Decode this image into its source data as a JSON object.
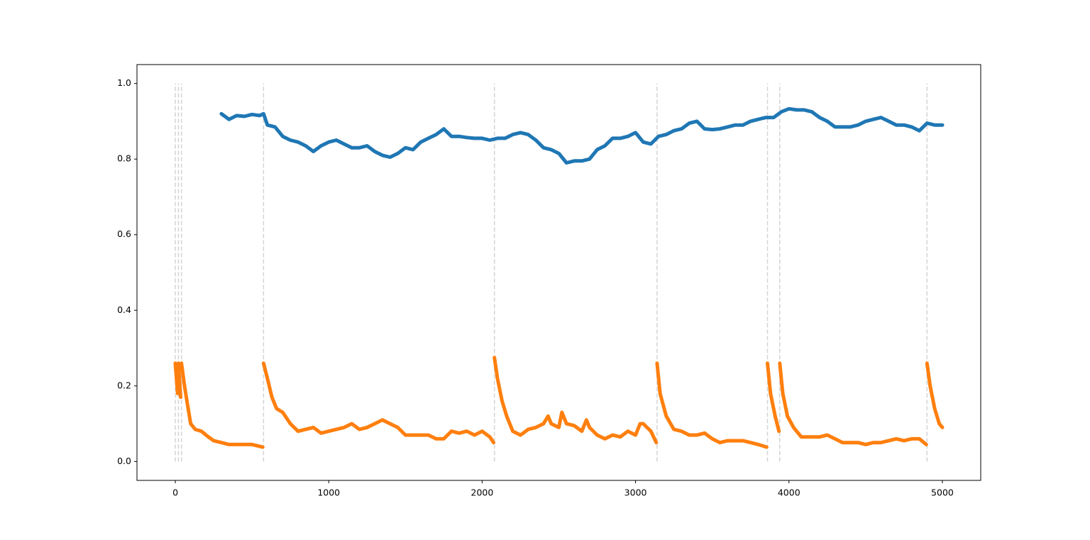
{
  "chart_data": {
    "type": "line",
    "xlim": [
      -250,
      5250
    ],
    "ylim": [
      -0.05,
      1.05
    ],
    "xticks": [
      0,
      1000,
      2000,
      3000,
      4000,
      5000
    ],
    "yticks": [
      {
        "value": 0,
        "label": "0.0"
      },
      0.2,
      0.4,
      0.6,
      0.8,
      {
        "value": 1,
        "label": "1.0"
      }
    ],
    "vlines": [
      0,
      20,
      40,
      575,
      2080,
      3140,
      3860,
      3940,
      4900
    ],
    "vline_range": [
      0,
      1
    ],
    "vline_color": "#d3d3d3",
    "series": [
      {
        "color": "#1f77b4",
        "x": [
          300,
          350,
          400,
          450,
          500,
          550,
          575,
          600,
          650,
          700,
          750,
          800,
          850,
          900,
          950,
          1000,
          1050,
          1100,
          1150,
          1200,
          1250,
          1300,
          1350,
          1400,
          1450,
          1500,
          1550,
          1600,
          1650,
          1700,
          1750,
          1800,
          1850,
          1900,
          1950,
          2000,
          2050,
          2100,
          2150,
          2200,
          2250,
          2300,
          2350,
          2400,
          2450,
          2500,
          2550,
          2600,
          2650,
          2700,
          2750,
          2800,
          2850,
          2900,
          2950,
          3000,
          3050,
          3100,
          3150,
          3200,
          3250,
          3300,
          3350,
          3400,
          3450,
          3500,
          3550,
          3600,
          3650,
          3700,
          3750,
          3800,
          3850,
          3900,
          3950,
          4000,
          4050,
          4100,
          4150,
          4200,
          4250,
          4300,
          4350,
          4400,
          4450,
          4500,
          4550,
          4600,
          4650,
          4700,
          4750,
          4800,
          4850,
          4900,
          4950,
          5000
        ],
        "values": [
          0.92,
          0.905,
          0.915,
          0.913,
          0.918,
          0.915,
          0.92,
          0.89,
          0.885,
          0.86,
          0.85,
          0.845,
          0.835,
          0.82,
          0.835,
          0.845,
          0.85,
          0.84,
          0.83,
          0.83,
          0.835,
          0.82,
          0.81,
          0.805,
          0.815,
          0.83,
          0.825,
          0.845,
          0.855,
          0.865,
          0.88,
          0.86,
          0.86,
          0.857,
          0.855,
          0.855,
          0.85,
          0.855,
          0.855,
          0.865,
          0.87,
          0.865,
          0.85,
          0.83,
          0.825,
          0.815,
          0.79,
          0.795,
          0.795,
          0.8,
          0.825,
          0.835,
          0.855,
          0.855,
          0.86,
          0.87,
          0.845,
          0.84,
          0.86,
          0.865,
          0.875,
          0.88,
          0.895,
          0.9,
          0.88,
          0.878,
          0.88,
          0.885,
          0.89,
          0.89,
          0.9,
          0.905,
          0.91,
          0.91,
          0.925,
          0.933,
          0.93,
          0.93,
          0.925,
          0.91,
          0.9,
          0.885,
          0.885,
          0.885,
          0.89,
          0.9,
          0.905,
          0.91,
          0.9,
          0.89,
          0.89,
          0.885,
          0.875,
          0.895,
          0.89,
          0.89
        ]
      },
      {
        "color": "#ff7f0e",
        "x": [
          0,
          15,
          null,
          20,
          35,
          null,
          40,
          60,
          80,
          100,
          130,
          170,
          200,
          250,
          300,
          350,
          400,
          450,
          500,
          550,
          570,
          null,
          575,
          600,
          630,
          660,
          700,
          750,
          800,
          850,
          900,
          950,
          1000,
          1050,
          1100,
          1150,
          1200,
          1250,
          1300,
          1350,
          1400,
          1450,
          1500,
          1550,
          1600,
          1650,
          1700,
          1750,
          1800,
          1850,
          1900,
          1950,
          2000,
          2050,
          2075,
          null,
          2080,
          2100,
          2130,
          2160,
          2200,
          2250,
          2300,
          2350,
          2400,
          2430,
          2450,
          2500,
          2520,
          2550,
          2600,
          2650,
          2680,
          2700,
          2750,
          2800,
          2850,
          2900,
          2950,
          3000,
          3030,
          3050,
          3100,
          3135,
          null,
          3140,
          3160,
          3200,
          3250,
          3300,
          3350,
          3400,
          3450,
          3500,
          3550,
          3600,
          3650,
          3700,
          3750,
          3800,
          3855,
          null,
          3860,
          3880,
          3910,
          3935,
          null,
          3940,
          3960,
          3990,
          4030,
          4080,
          4150,
          4200,
          4250,
          4300,
          4350,
          4400,
          4450,
          4500,
          4550,
          4600,
          4650,
          4700,
          4750,
          4800,
          4850,
          4895,
          null,
          4900,
          4920,
          4950,
          4980,
          5000
        ],
        "values": [
          0.26,
          0.18,
          null,
          0.26,
          0.17,
          null,
          0.26,
          0.2,
          0.15,
          0.1,
          0.085,
          0.08,
          0.07,
          0.055,
          0.05,
          0.045,
          0.045,
          0.045,
          0.045,
          0.04,
          0.038,
          null,
          0.26,
          0.22,
          0.17,
          0.14,
          0.13,
          0.1,
          0.08,
          0.085,
          0.09,
          0.075,
          0.08,
          0.085,
          0.09,
          0.1,
          0.085,
          0.09,
          0.1,
          0.11,
          0.1,
          0.09,
          0.07,
          0.07,
          0.07,
          0.07,
          0.06,
          0.06,
          0.08,
          0.075,
          0.08,
          0.07,
          0.08,
          0.065,
          0.05,
          null,
          0.275,
          0.22,
          0.16,
          0.12,
          0.08,
          0.07,
          0.085,
          0.09,
          0.1,
          0.12,
          0.1,
          0.09,
          0.13,
          0.1,
          0.095,
          0.08,
          0.11,
          0.09,
          0.07,
          0.06,
          0.07,
          0.065,
          0.08,
          0.07,
          0.1,
          0.1,
          0.08,
          0.05,
          null,
          0.26,
          0.18,
          0.12,
          0.085,
          0.08,
          0.07,
          0.07,
          0.075,
          0.06,
          0.05,
          0.055,
          0.055,
          0.055,
          0.05,
          0.045,
          0.038,
          null,
          0.26,
          0.18,
          0.12,
          0.08,
          null,
          0.26,
          0.18,
          0.12,
          0.09,
          0.065,
          0.065,
          0.065,
          0.07,
          0.06,
          0.05,
          0.05,
          0.05,
          0.045,
          0.05,
          0.05,
          0.055,
          0.06,
          0.055,
          0.06,
          0.06,
          0.045,
          null,
          0.26,
          0.2,
          0.14,
          0.1,
          0.09
        ]
      }
    ]
  }
}
